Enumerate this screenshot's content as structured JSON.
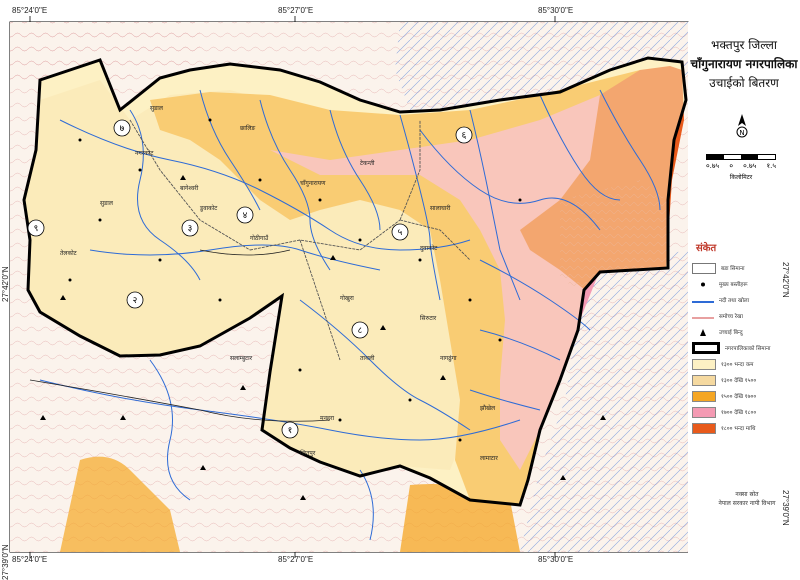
{
  "title": {
    "line1": "भक्तपुर जिल्ला",
    "line2": "चाँगुनारायण नगरपालिका",
    "line3": "उचाईको बितरण"
  },
  "coordinates": {
    "top": [
      "85°24'0\"E",
      "85°27'0\"E",
      "85°30'0\"E"
    ],
    "bottom": [
      "85°24'0\"E",
      "85°27'0\"E",
      "85°30'0\"E"
    ],
    "left": [
      "27°42'0\"N",
      "27°39'0\"N"
    ],
    "right": [
      "27°42'0\"N",
      "27°39'0\"N"
    ]
  },
  "scale": {
    "ticks": [
      "०.७५",
      "०",
      "०.७५",
      "१.५"
    ],
    "unit": "किलोमिटर"
  },
  "legend": {
    "heading": "संकेत",
    "items": [
      {
        "label": "बडा सिमाना",
        "type": "box-outline",
        "color": "#777777"
      },
      {
        "label": "मुख्य बस्तीहरू",
        "type": "dot",
        "color": "#000000"
      },
      {
        "label": "नदी तथा खोला",
        "type": "line",
        "color": "#2e6bd6"
      },
      {
        "label": "समोच्च रेखा",
        "type": "line",
        "color": "#e8a0a0"
      },
      {
        "label": "उच्चाई बिन्दु",
        "type": "triangle",
        "color": "#000000"
      },
      {
        "label": "नगरपालिकाको सिमाना",
        "type": "thick-box",
        "color": "#000000"
      },
      {
        "label": "१३०० भन्दा कम",
        "type": "fill",
        "color": "#fdf1c4"
      },
      {
        "label": "१३०० देखि १५००",
        "type": "fill",
        "color": "#f5d9a0"
      },
      {
        "label": "१५०० देखि १७००",
        "type": "fill",
        "color": "#f5a623"
      },
      {
        "label": "१७०० देखि १८००",
        "type": "fill",
        "color": "#f49ab3"
      },
      {
        "label": "१८०० भन्दा माथि",
        "type": "fill",
        "color": "#e85a1b"
      }
    ]
  },
  "credit": {
    "line1": "नक्सा स्रोत",
    "line2": "नेपाल सरकार नापी विभाग"
  },
  "north_label": "N",
  "wards": [
    "१",
    "२",
    "३",
    "४",
    "५",
    "६",
    "७",
    "८",
    "९"
  ],
  "places": [
    "सुडाल",
    "बागेश्वरी",
    "चाँगुनारायण",
    "तेलकोट",
    "सुडाल",
    "डुवाकोट",
    "नगरकोट",
    "गोखुरा",
    "ताथली",
    "सिरुटार",
    "नागढुंगा",
    "मनहरा",
    "झौखेल",
    "छालिङ",
    "टेकन्ती",
    "सालाघारी",
    "दुवाकोट",
    "गोठीगाउँ",
    "जितपुर",
    "सलाम्बुटार",
    "लामाटार"
  ]
}
